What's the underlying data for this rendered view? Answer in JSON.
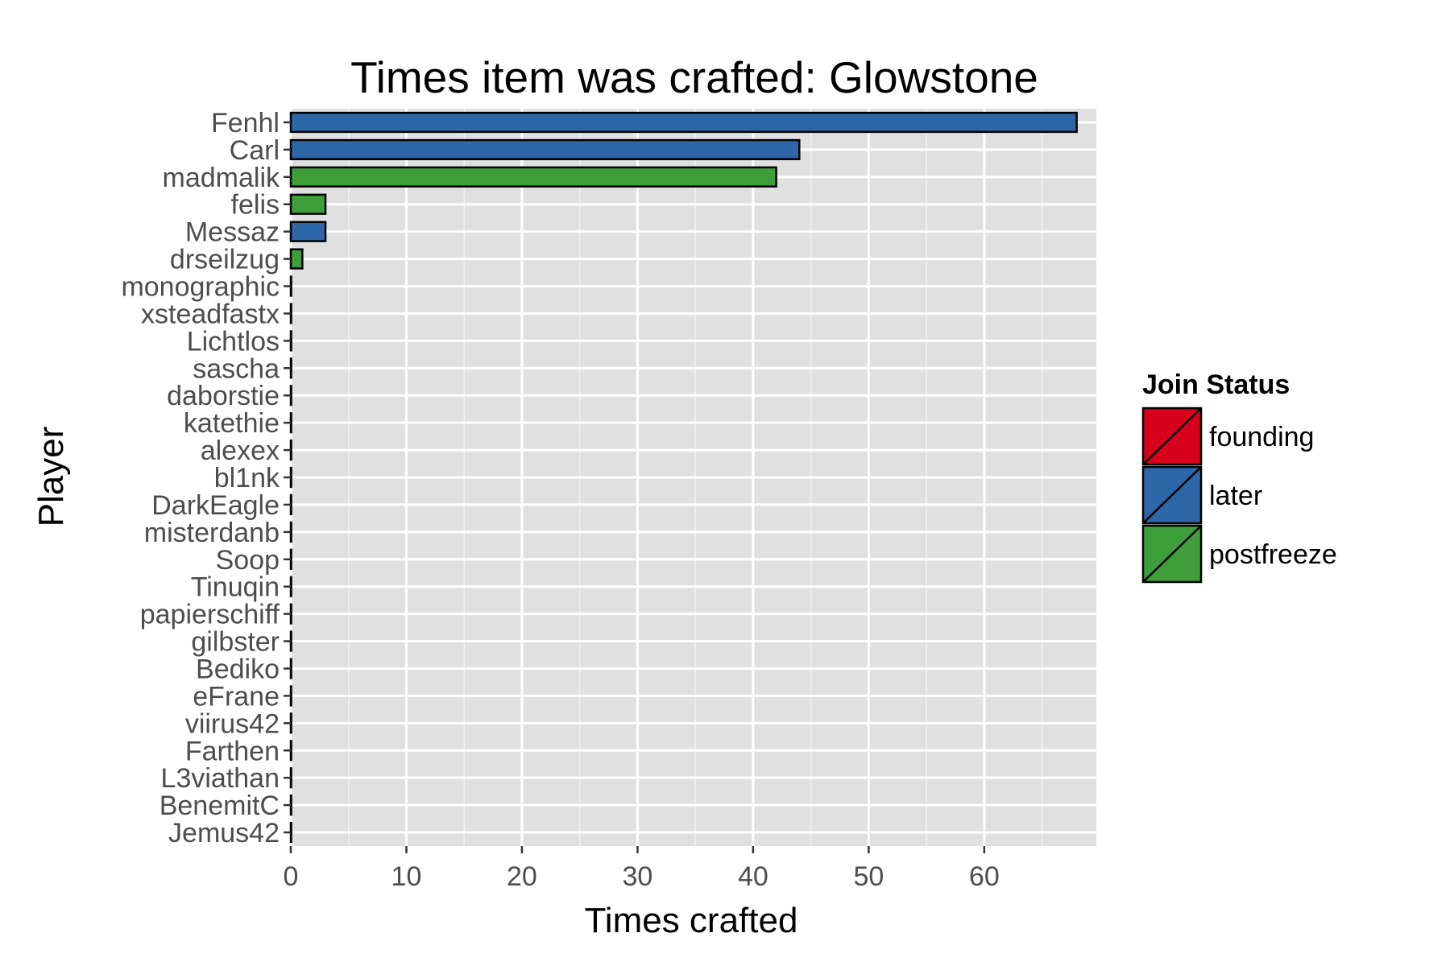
{
  "chart_data": {
    "type": "bar",
    "orientation": "horizontal",
    "title": "Times item was crafted: Glowstone",
    "xlabel": "Times crafted",
    "ylabel": "Player",
    "xlim": [
      0,
      69.7
    ],
    "xticks": [
      0,
      10,
      20,
      30,
      40,
      50,
      60
    ],
    "grid": true,
    "legend": {
      "title": "Join Status",
      "placement": "right",
      "entries": [
        {
          "name": "founding",
          "color": "#d7001c"
        },
        {
          "name": "later",
          "color": "#2d67a8"
        },
        {
          "name": "postfreeze",
          "color": "#3e9e3a"
        }
      ]
    },
    "categories": [
      "Fenhl",
      "Carl",
      "madmalik",
      "felis",
      "Messaz",
      "drseilzug",
      "monographic",
      "xsteadfastx",
      "Lichtlos",
      "sascha",
      "daborstie",
      "katethie",
      "alexex",
      "bl1nk",
      "DarkEagle",
      "misterdanb",
      "Soop",
      "Tinuqin",
      "papierschiff",
      "gilbster",
      "Bediko",
      "eFrane",
      "viirus42",
      "Farthen",
      "L3viathan",
      "BenemitC",
      "Jemus42"
    ],
    "values": [
      68,
      44,
      42,
      3,
      3,
      1,
      0,
      0,
      0,
      0,
      0,
      0,
      0,
      0,
      0,
      0,
      0,
      0,
      0,
      0,
      0,
      0,
      0,
      0,
      0,
      0,
      0
    ],
    "status": [
      "later",
      "later",
      "postfreeze",
      "postfreeze",
      "later",
      "postfreeze",
      "",
      "",
      "",
      "",
      "",
      "",
      "",
      "",
      "",
      "",
      "",
      "",
      "",
      "",
      "",
      "",
      "",
      "",
      "",
      "",
      ""
    ]
  }
}
